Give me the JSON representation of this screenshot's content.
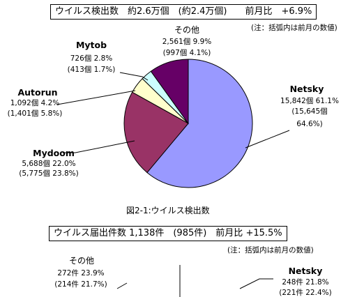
{
  "chart1": {
    "title": "ウイルス検出数　約2.6万個　(約2.4万個)　　前月比　+6.9%",
    "note": "(注：括弧内は前月の数値)",
    "caption": "図2-1:ウイルス検出数"
  },
  "chart2": {
    "title": "ウイルス届出件数 1,138件　(985件)　前月比 +15.5%",
    "note": "(注：括弧内は前月の数値)"
  },
  "chart_data": [
    {
      "type": "pie",
      "slices": [
        {
          "name": "Netsky",
          "value": 61.1,
          "color": "#9999ff",
          "line1": "15,842個 61.1%",
          "line2": "(15,645個",
          "line3": "64.6%)"
        },
        {
          "name": "Mydoom",
          "value": 22.0,
          "color": "#993366",
          "line1": "5,688個 22.0%",
          "line2": "(5,775個 23.8%)"
        },
        {
          "name": "Autorun",
          "value": 4.2,
          "color": "#ffffcc",
          "line1": "1,092個 4.2%",
          "line2": "(1,401個 5.8%)"
        },
        {
          "name": "Mytob",
          "value": 2.8,
          "color": "#ccffff",
          "line1": "726個 2.8%",
          "line2": "(413個 1.7%)"
        },
        {
          "name": "その他",
          "value": 9.9,
          "color": "#660066",
          "line1": "2,561個 9.9%",
          "line2": "(997個 4.1%)"
        }
      ]
    },
    {
      "type": "pie",
      "slices": [
        {
          "name": "Netsky",
          "value": 21.8,
          "color": "#8080e0",
          "line1": "248件 21.8%",
          "line2": "(221件 22.4%)"
        },
        {
          "name": "その他",
          "value": 23.9,
          "color": "#0000cc",
          "line1": "272件 23.9%",
          "line2": "(214件 21.7%)"
        }
      ]
    }
  ]
}
